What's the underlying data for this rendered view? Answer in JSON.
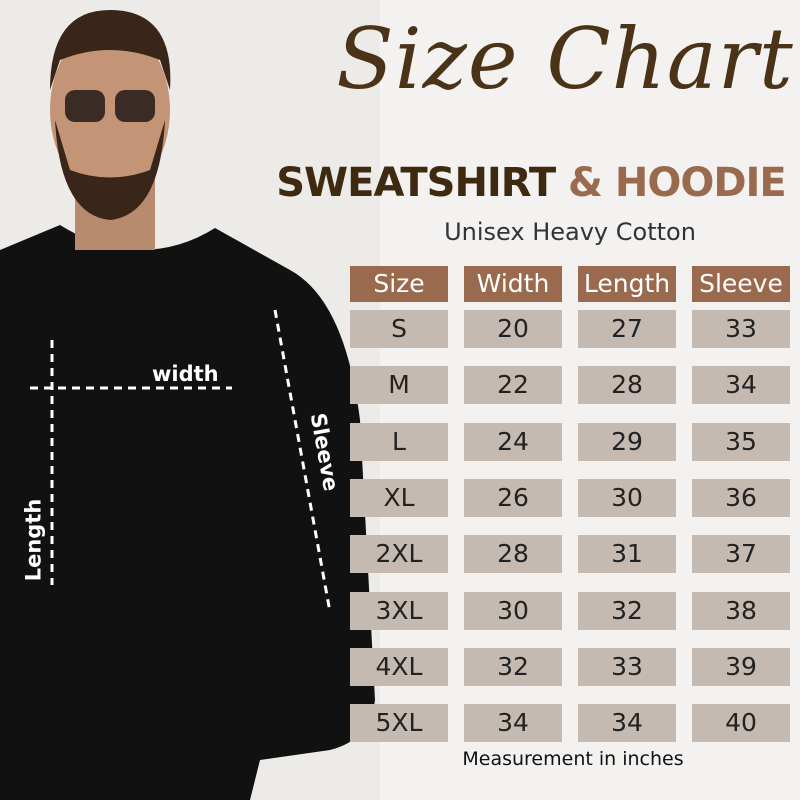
{
  "title": "Size Chart",
  "subtitle": {
    "part1": "SWEATSHIRT",
    "part2": "& HOODIE"
  },
  "tagline": "Unisex Heavy Cotton",
  "headers": [
    "Size",
    "Width",
    "Length",
    "Sleeve"
  ],
  "rows": [
    [
      "S",
      "20",
      "27",
      "33"
    ],
    [
      "M",
      "22",
      "28",
      "34"
    ],
    [
      "L",
      "24",
      "29",
      "35"
    ],
    [
      "XL",
      "26",
      "30",
      "36"
    ],
    [
      "2XL",
      "28",
      "31",
      "37"
    ],
    [
      "3XL",
      "30",
      "32",
      "38"
    ],
    [
      "4XL",
      "32",
      "33",
      "39"
    ],
    [
      "5XL",
      "34",
      "34",
      "40"
    ]
  ],
  "footer": "Measurement in inches",
  "diagram_labels": {
    "width": "width",
    "length": "Length",
    "sleeve": "Sleeve"
  },
  "colors": {
    "header": "#9a6a4e",
    "cell": "#c5bab2",
    "title": "#4a3317"
  }
}
